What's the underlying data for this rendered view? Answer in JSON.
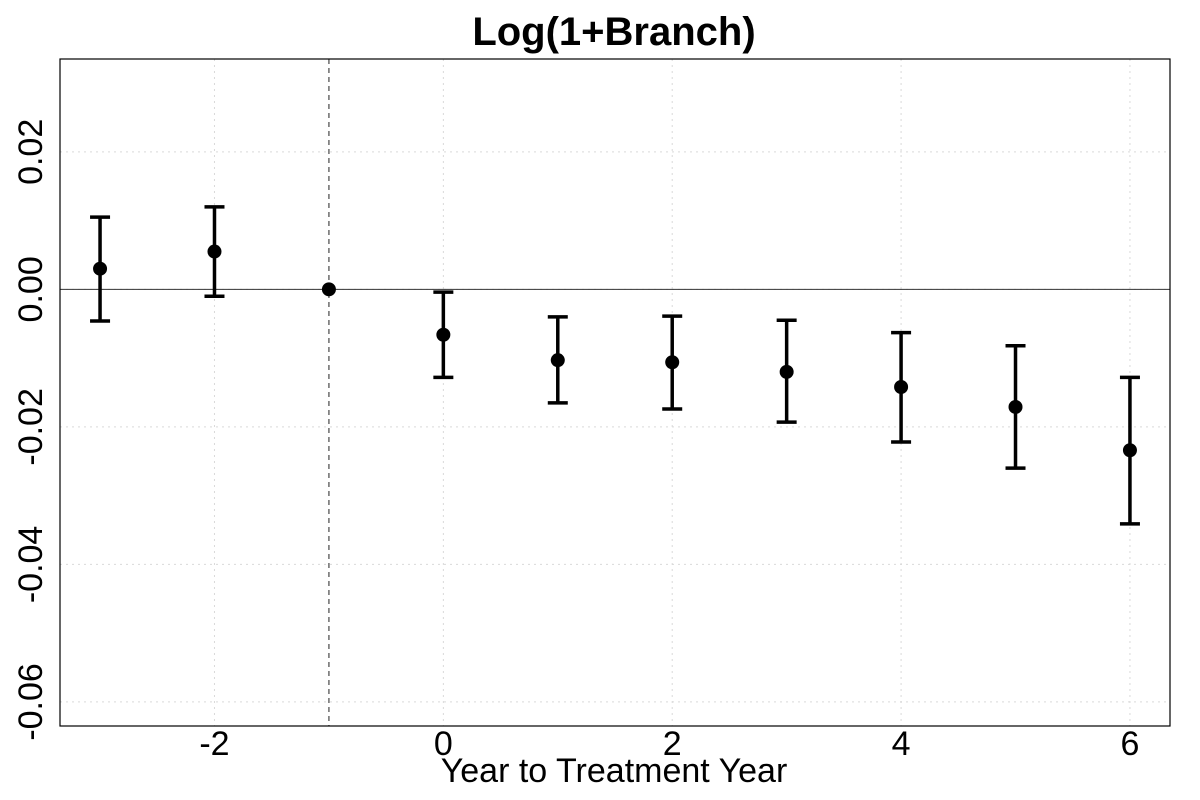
{
  "chart_data": {
    "type": "scatter",
    "title": "Log(1+Branch)",
    "xlabel": "Year to Treatment Year",
    "ylabel": "",
    "xlim": [
      -3.35,
      6.35
    ],
    "ylim": [
      -0.0635,
      0.0335
    ],
    "x_ticks": [
      -2,
      0,
      2,
      4,
      6
    ],
    "x_tick_labels": [
      "-2",
      "0",
      "2",
      "4",
      "6"
    ],
    "y_ticks": [
      -0.06,
      -0.04,
      -0.02,
      0.0,
      0.02
    ],
    "y_tick_labels": [
      "-0.06",
      "-0.04",
      "-0.02",
      "0.00",
      "0.02"
    ],
    "grid": true,
    "reference_lines": {
      "horizontal_y": 0.0,
      "vertical_x": -1
    },
    "colors": {
      "points": "#000000",
      "reference": "#555555",
      "grid": "#d9d9d9"
    },
    "points": [
      {
        "x": -3,
        "y": 0.003,
        "lower": -0.0046,
        "upper": 0.0105
      },
      {
        "x": -2,
        "y": 0.0055,
        "lower": -0.001,
        "upper": 0.012
      },
      {
        "x": -1,
        "y": 0.0,
        "lower": null,
        "upper": null
      },
      {
        "x": 0,
        "y": -0.0066,
        "lower": -0.0128,
        "upper": -0.0004
      },
      {
        "x": 1,
        "y": -0.0103,
        "lower": -0.0165,
        "upper": -0.004
      },
      {
        "x": 2,
        "y": -0.0106,
        "lower": -0.0174,
        "upper": -0.0039
      },
      {
        "x": 3,
        "y": -0.012,
        "lower": -0.0193,
        "upper": -0.0045
      },
      {
        "x": 4,
        "y": -0.0142,
        "lower": -0.0222,
        "upper": -0.0063
      },
      {
        "x": 5,
        "y": -0.0171,
        "lower": -0.026,
        "upper": -0.0082
      },
      {
        "x": 6,
        "y": -0.0234,
        "lower": -0.0341,
        "upper": -0.0128
      }
    ]
  }
}
